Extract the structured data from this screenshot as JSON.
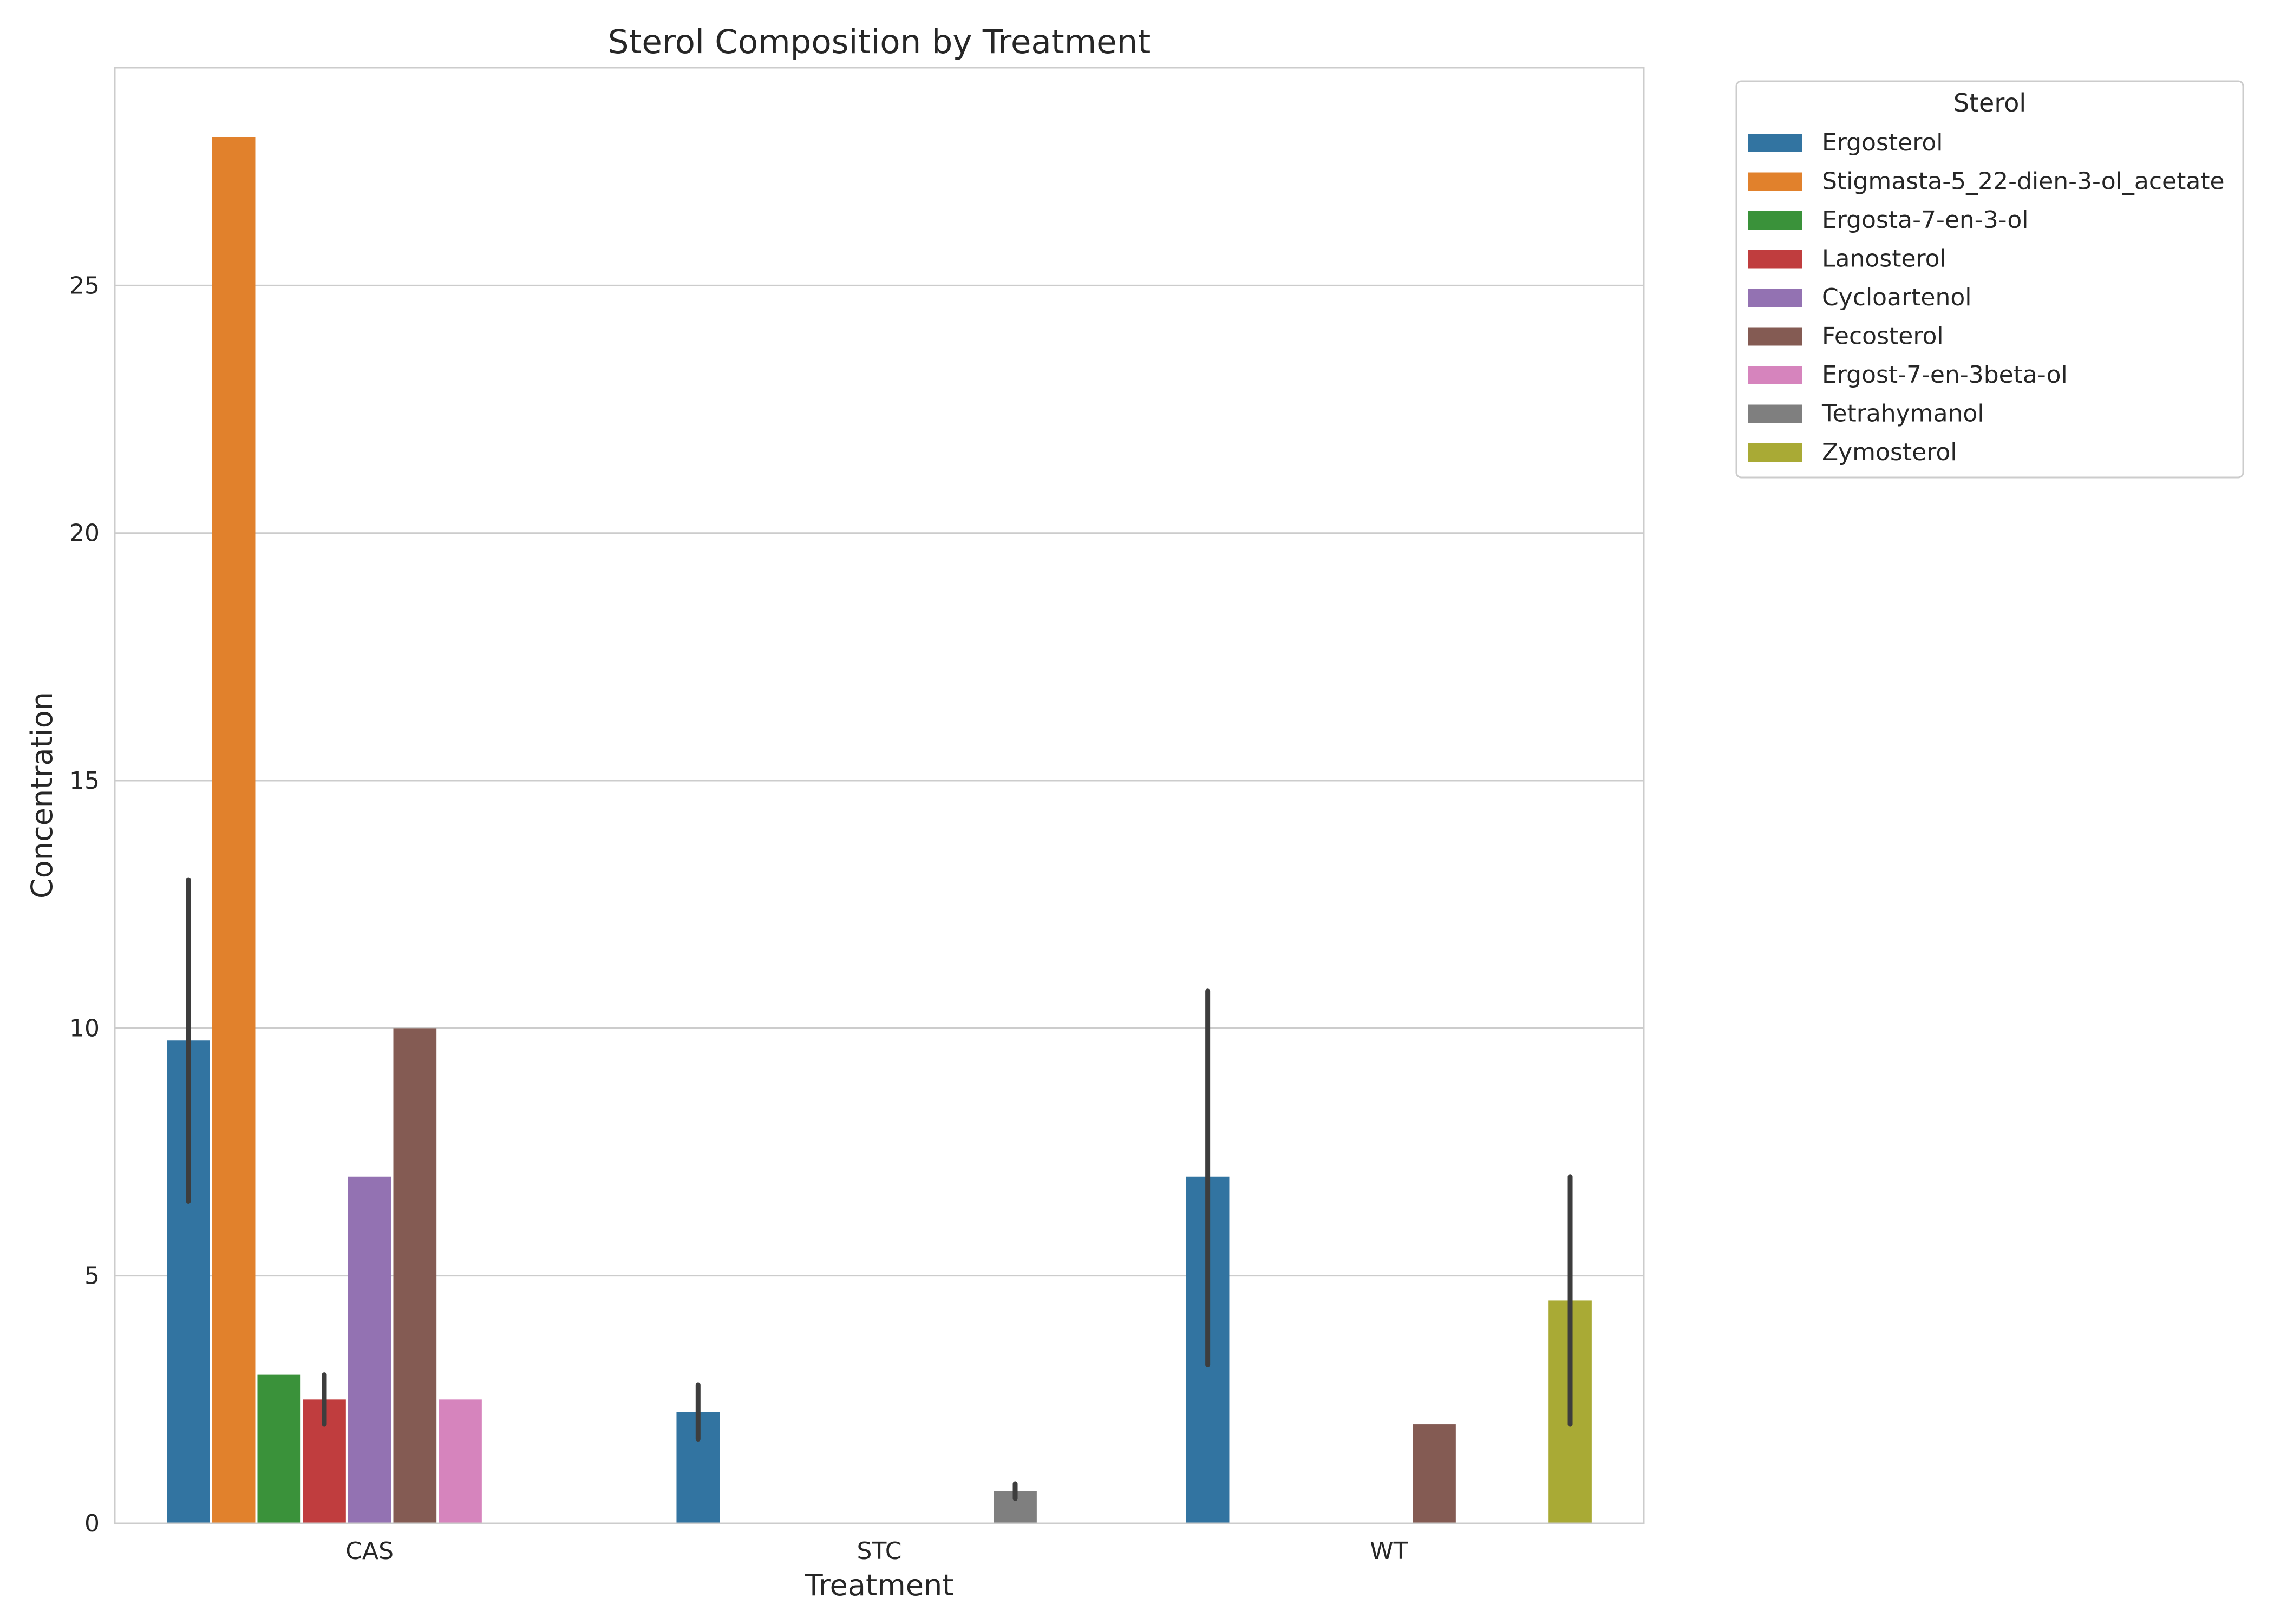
{
  "chart_data": {
    "type": "bar",
    "title": "Sterol Composition by Treatment",
    "xlabel": "Treatment",
    "ylabel": "Concentration",
    "ylim": [
      0,
      29.4
    ],
    "yticks": [
      0,
      5,
      10,
      15,
      20,
      25
    ],
    "grid": true,
    "categories": [
      "CAS",
      "STC",
      "WT"
    ],
    "legend": {
      "title": "Sterol",
      "placement": "outside-top-right"
    },
    "series": [
      {
        "name": "Ergosterol",
        "color": "#3274a1",
        "values": [
          9.75,
          2.25,
          7.0
        ],
        "err_low": [
          6.5,
          1.7,
          3.2
        ],
        "err_high": [
          13.0,
          2.8,
          10.75
        ]
      },
      {
        "name": "Stigmasta-5_22-dien-3-ol_acetate",
        "color": "#e1812c",
        "values": [
          28.0,
          null,
          null
        ],
        "err_low": [
          null,
          null,
          null
        ],
        "err_high": [
          null,
          null,
          null
        ]
      },
      {
        "name": "Ergosta-7-en-3-ol",
        "color": "#3a923a",
        "values": [
          3.0,
          null,
          null
        ],
        "err_low": [
          null,
          null,
          null
        ],
        "err_high": [
          null,
          null,
          null
        ]
      },
      {
        "name": "Lanosterol",
        "color": "#c03d3e",
        "values": [
          2.5,
          null,
          null
        ],
        "err_low": [
          2.0,
          null,
          null
        ],
        "err_high": [
          3.0,
          null,
          null
        ]
      },
      {
        "name": "Cycloartenol",
        "color": "#9372b2",
        "values": [
          7.0,
          null,
          null
        ],
        "err_low": [
          null,
          null,
          null
        ],
        "err_high": [
          null,
          null,
          null
        ]
      },
      {
        "name": "Fecosterol",
        "color": "#845b53",
        "values": [
          10.0,
          null,
          2.0
        ],
        "err_low": [
          null,
          null,
          null
        ],
        "err_high": [
          null,
          null,
          null
        ]
      },
      {
        "name": "Ergost-7-en-3beta-ol",
        "color": "#d684bd",
        "values": [
          2.5,
          null,
          null
        ],
        "err_low": [
          null,
          null,
          null
        ],
        "err_high": [
          null,
          null,
          null
        ]
      },
      {
        "name": "Tetrahymanol",
        "color": "#7f7f7f",
        "values": [
          null,
          0.65,
          null
        ],
        "err_low": [
          null,
          0.5,
          null
        ],
        "err_high": [
          null,
          0.8,
          null
        ]
      },
      {
        "name": "Zymosterol",
        "color": "#a9aa35",
        "values": [
          null,
          null,
          4.5
        ],
        "err_low": [
          null,
          null,
          2.0
        ],
        "err_high": [
          null,
          null,
          7.0
        ]
      }
    ]
  }
}
